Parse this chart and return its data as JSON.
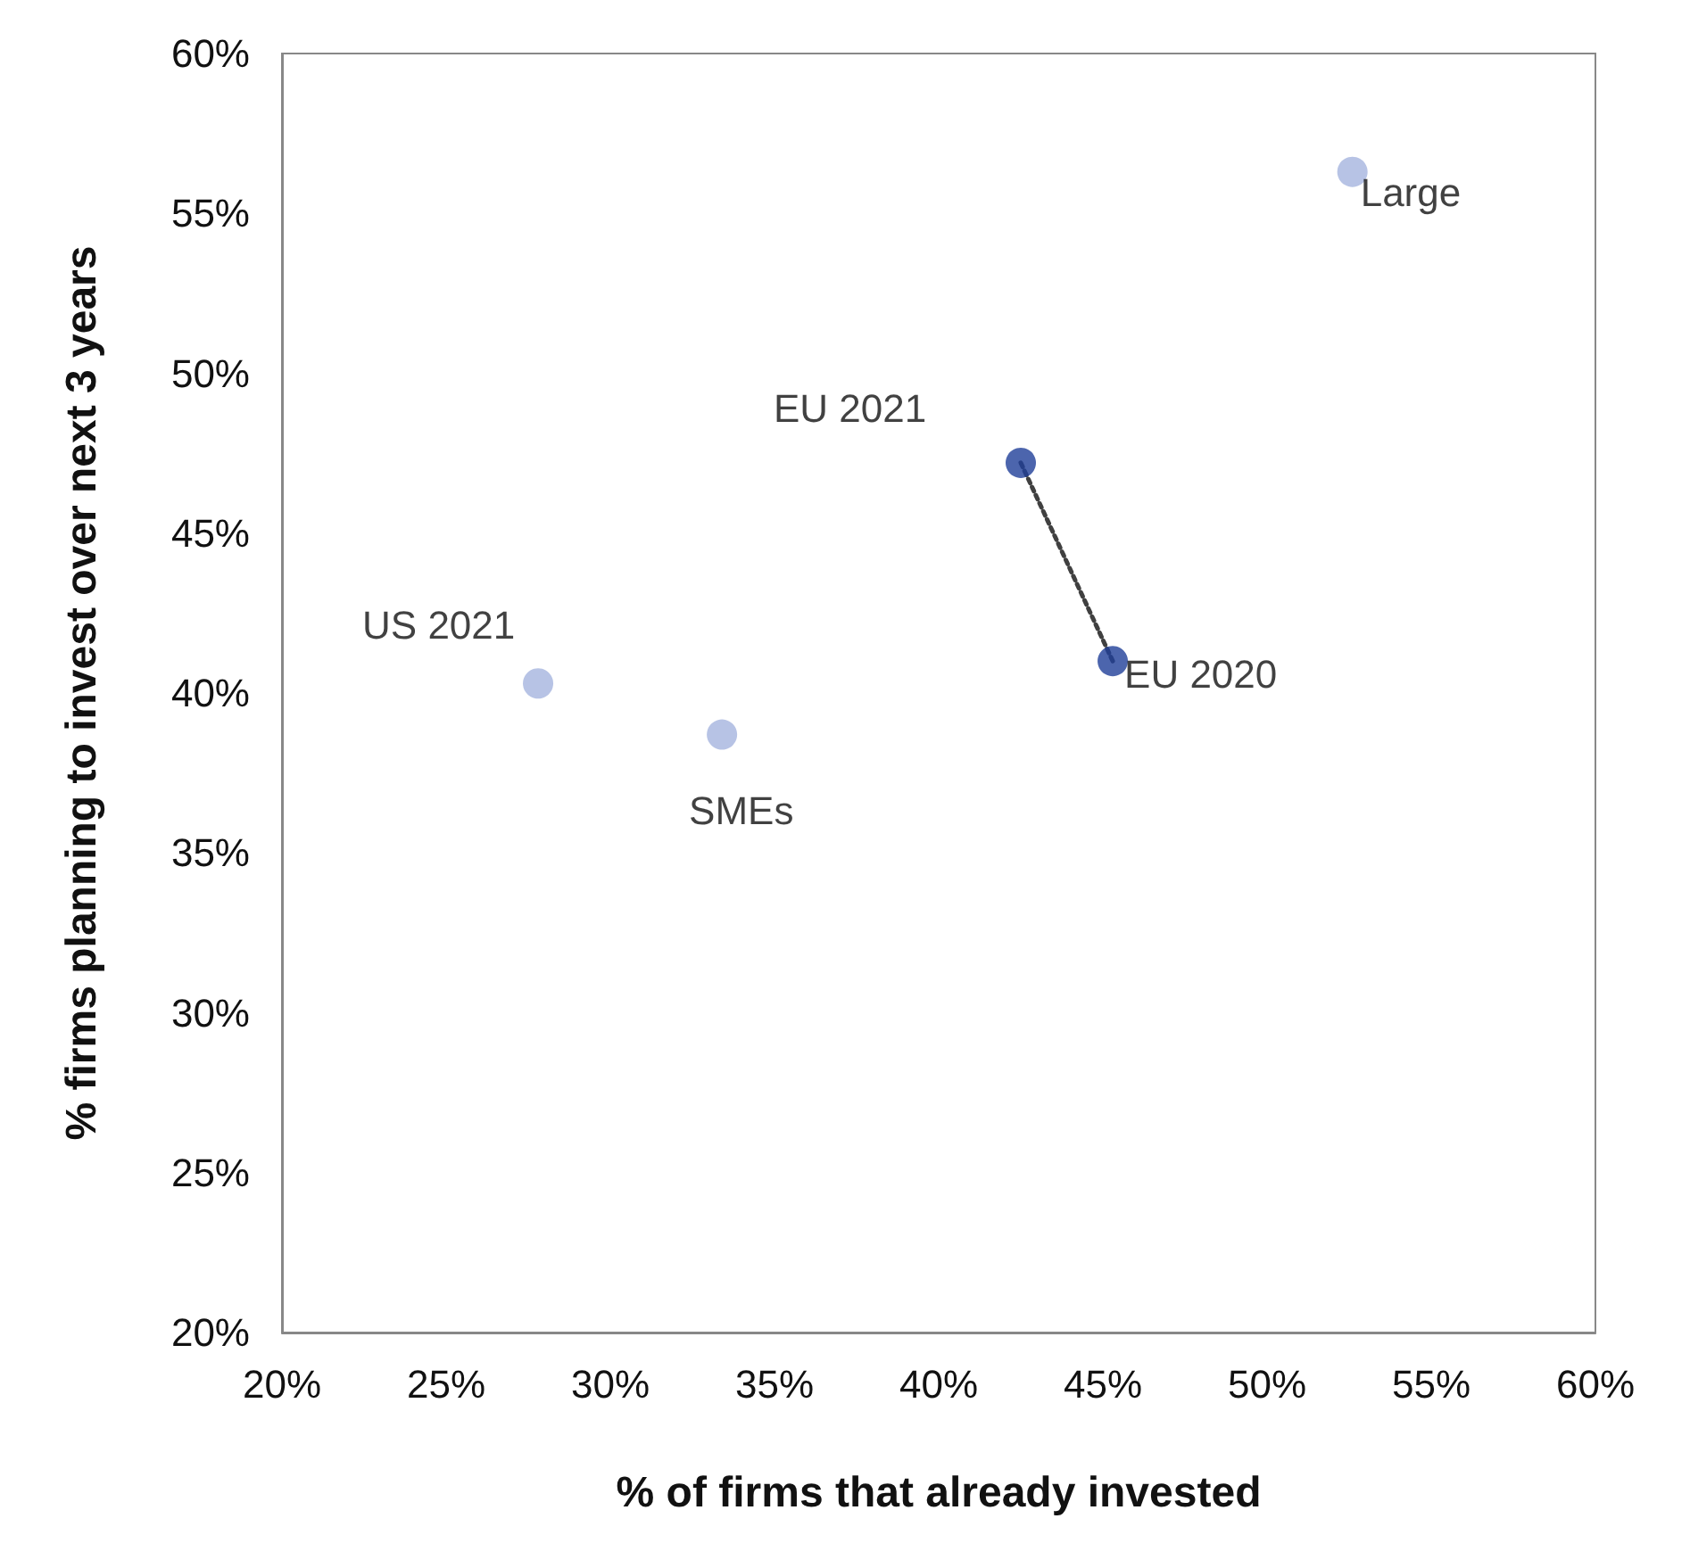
{
  "chart_data": {
    "type": "scatter",
    "xlabel": "% of firms that already invested",
    "ylabel": "% firms planning to invest over next 3 years",
    "xlim": [
      20,
      60
    ],
    "ylim": [
      20,
      60
    ],
    "xticks": [
      {
        "value": 20,
        "label": "20%"
      },
      {
        "value": 25,
        "label": "25%"
      },
      {
        "value": 30,
        "label": "30%"
      },
      {
        "value": 35,
        "label": "35%"
      },
      {
        "value": 40,
        "label": "40%"
      },
      {
        "value": 45,
        "label": "45%"
      },
      {
        "value": 50,
        "label": "50%"
      },
      {
        "value": 55,
        "label": "55%"
      },
      {
        "value": 60,
        "label": "60%"
      }
    ],
    "yticks": [
      {
        "value": 20,
        "label": "20%"
      },
      {
        "value": 25,
        "label": "25%"
      },
      {
        "value": 30,
        "label": "30%"
      },
      {
        "value": 35,
        "label": "35%"
      },
      {
        "value": 40,
        "label": "40%"
      },
      {
        "value": 45,
        "label": "45%"
      },
      {
        "value": 50,
        "label": "50%"
      },
      {
        "value": 55,
        "label": "55%"
      },
      {
        "value": 60,
        "label": "60%"
      }
    ],
    "grid": false,
    "legend": false,
    "marker": "circle",
    "series": [
      {
        "type": "line",
        "color": "#404040",
        "line_style": "dotted",
        "marker": "none",
        "x": [
          42.5,
          45.3
        ],
        "values": [
          47.2,
          41.0
        ]
      },
      {
        "name": "Large",
        "color": "#a5b4de",
        "x": [
          52.6
        ],
        "values": [
          56.3
        ]
      },
      {
        "name": "EU 2021",
        "color": "#1f3f99",
        "x": [
          42.5
        ],
        "values": [
          47.2
        ]
      },
      {
        "name": "EU 2020",
        "color": "#1f3f99",
        "x": [
          45.3
        ],
        "values": [
          41.0
        ]
      },
      {
        "name": "US 2021",
        "color": "#a5b4de",
        "x": [
          27.8
        ],
        "values": [
          40.3
        ]
      },
      {
        "name": "SMEs",
        "color": "#a5b4de",
        "x": [
          33.4
        ],
        "values": [
          38.7
        ]
      }
    ]
  }
}
